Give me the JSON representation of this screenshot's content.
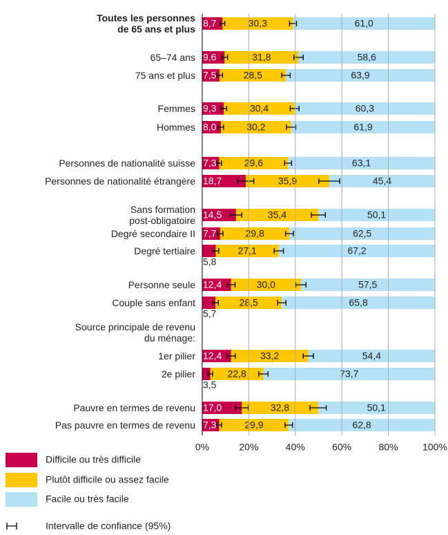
{
  "chart_data": {
    "type": "bar",
    "orientation": "horizontal",
    "stacked": true,
    "categories": [
      "Toutes les personnes\nde 65 ans et plus",
      "65–74 ans",
      "75 ans et plus",
      "Femmes",
      "Hommes",
      "Personnes de nationalité suisse",
      "Personnes de nationalité étrangère",
      "Sans formation\npost-obligatoire",
      "Degré secondaire II",
      "Degré tertiaire",
      "Personne seule",
      "Couple sans enfant",
      "Source principale de revenu\ndu ménage:",
      "1er pilier",
      "2e pilier",
      "Pauvre en termes de revenu",
      "Pas pauvre en termes de revenu"
    ],
    "series": [
      {
        "name": "Difficile ou très difficile",
        "color": "#c8004b",
        "values": [
          8.7,
          9.6,
          7.5,
          9.3,
          8.0,
          7.3,
          18.7,
          14.5,
          7.7,
          5.8,
          12.4,
          5.7,
          null,
          12.4,
          3.5,
          17.0,
          7.3
        ],
        "value_labels": [
          "8,7",
          "9,6",
          "7,5",
          "9,3",
          "8,0",
          "7,3",
          "18,7",
          "14,5",
          "7,7",
          "5,8",
          "12,4",
          "5,7",
          null,
          "12,4",
          "3,5",
          "17,0",
          "7,3"
        ],
        "errors": [
          1.0,
          1.3,
          1.2,
          1.2,
          1.2,
          1.0,
          3.5,
          2.5,
          1.2,
          1.3,
          1.7,
          1.2,
          null,
          1.8,
          1.0,
          2.8,
          1.0
        ]
      },
      {
        "name": "Plutôt difficile ou assez facile",
        "color": "#ffc800",
        "values": [
          30.3,
          31.8,
          28.5,
          30.4,
          30.2,
          29.6,
          35.9,
          35.4,
          29.8,
          27.1,
          30.0,
          28.5,
          null,
          33.2,
          22.8,
          32.8,
          29.9
        ],
        "value_labels": [
          "30,3",
          "31,8",
          "28,5",
          "30,4",
          "30,2",
          "29,6",
          "35,9",
          "35,4",
          "29,8",
          "27,1",
          "30,0",
          "28,5",
          null,
          "33,2",
          "22,8",
          "32,8",
          "29,9"
        ],
        "errors": [
          1.5,
          2.0,
          1.8,
          1.9,
          2.0,
          1.5,
          4.5,
          3.0,
          1.7,
          2.0,
          2.2,
          1.8,
          null,
          2.2,
          2.0,
          3.5,
          1.6
        ]
      },
      {
        "name": "Facile ou très facile",
        "color": "#b4e1f5",
        "values": [
          61.0,
          58.6,
          63.9,
          60.3,
          61.9,
          63.1,
          45.4,
          50.1,
          62.5,
          67.2,
          57.5,
          65.8,
          null,
          54.4,
          73.7,
          50.1,
          62.8
        ],
        "value_labels": [
          "61,0",
          "58,6",
          "63,9",
          "60,3",
          "61,9",
          "63,1",
          "45,4",
          "50,1",
          "62,5",
          "67,2",
          "57,5",
          "65,8",
          null,
          "54,4",
          "73,7",
          "50,1",
          "62,8"
        ]
      }
    ],
    "xlim": [
      0,
      100
    ],
    "xticks": [
      {
        "value": 0,
        "label": "0%"
      },
      {
        "value": 20,
        "label": "20%"
      },
      {
        "value": 40,
        "label": "40%"
      },
      {
        "value": 60,
        "label": "60%"
      },
      {
        "value": 80,
        "label": "80%"
      },
      {
        "value": 100,
        "label": "100%"
      }
    ],
    "grid": true,
    "error_legend": "Intervalle de confiance (95%)"
  }
}
